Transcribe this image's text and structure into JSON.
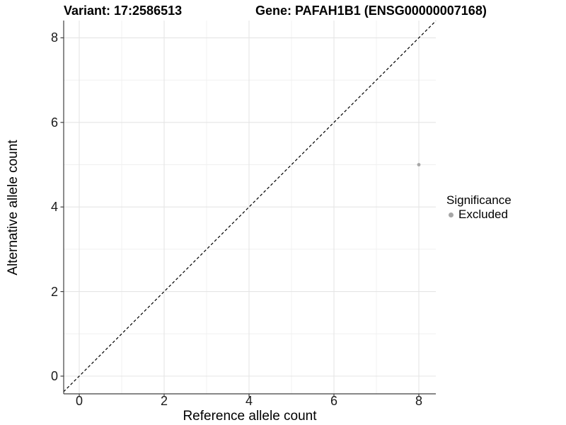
{
  "header": {
    "title_left": "Variant: 17:2586513",
    "title_right": "Gene: PAFAH1B1 (ENSG00000007168)"
  },
  "chart_data": {
    "type": "scatter",
    "xlabel": "Reference allele count",
    "ylabel": "Alternative allele count",
    "x_ticks": [
      0,
      2,
      4,
      6,
      8
    ],
    "y_ticks": [
      0,
      2,
      4,
      6,
      8
    ],
    "x_tick_labels": [
      "0",
      "2",
      "4",
      "6",
      "8"
    ],
    "y_tick_labels": [
      "0",
      "2",
      "4",
      "6",
      "8"
    ],
    "x_minor_ticks": [
      1,
      3,
      5,
      7
    ],
    "y_minor_ticks": [
      1,
      3,
      5,
      7
    ],
    "xlim": [
      -0.37,
      8.4
    ],
    "ylim": [
      -0.42,
      8.4
    ],
    "grid": "on",
    "points": [
      {
        "x": 8,
        "y": 5,
        "series": "Excluded"
      }
    ],
    "reference_line": {
      "equation": "y = x",
      "style": "dashed",
      "color": "#000000"
    },
    "legend": {
      "title": "Significance",
      "position": "right",
      "entries": [
        {
          "label": "Excluded",
          "color": "#a6a6a6"
        }
      ]
    },
    "colors": {
      "point": "#a6a6a6",
      "grid_major": "#e5e5e5",
      "grid_minor": "#f0f0f0",
      "axis": "#404040",
      "tick_text": "#1a1a1a",
      "background": "#ffffff"
    }
  }
}
